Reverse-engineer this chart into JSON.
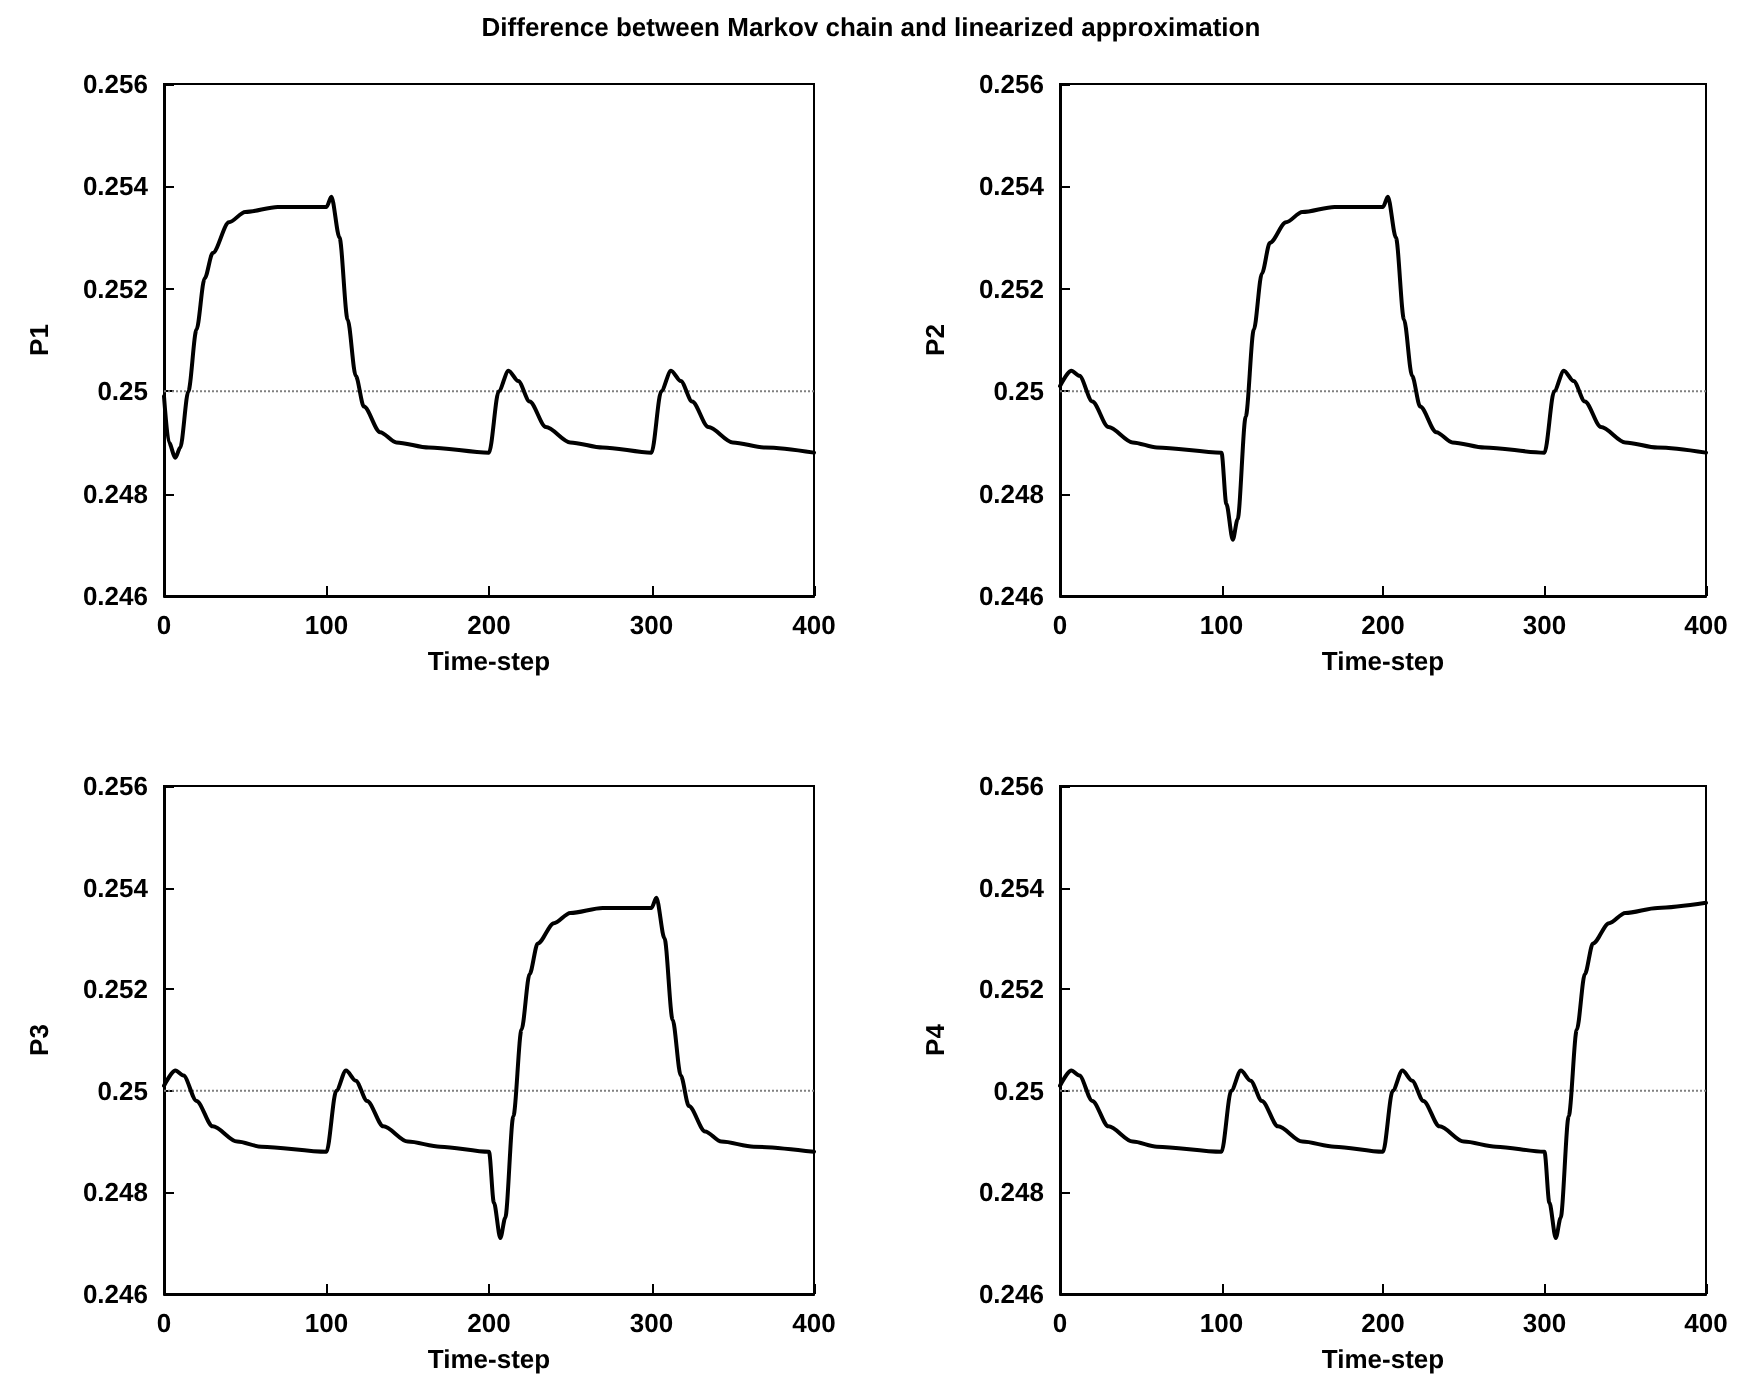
{
  "chart_data": [
    {
      "type": "line",
      "title": "Difference between Markov chain and linearized approximation",
      "xlabel": "Time-step",
      "ylabel": "P1",
      "xlim": [
        0,
        400
      ],
      "xticks": [
        0,
        100,
        200,
        300,
        400
      ],
      "ylim": [
        0.246,
        0.256
      ],
      "yticks": [
        0.246,
        0.248,
        0.25,
        0.252,
        0.254,
        0.256
      ],
      "grid": false,
      "line_style": "solid",
      "ref_lines": [
        {
          "axis": "y",
          "value": 0.25,
          "color": "#808080",
          "line_style": "dotted"
        }
      ],
      "series": [
        {
          "color": "#000000",
          "x": [
            0,
            3,
            7,
            10,
            15,
            20,
            25,
            30,
            40,
            50,
            70,
            100,
            103,
            108,
            113,
            118,
            123,
            133,
            143,
            163,
            200,
            206,
            212,
            218,
            225,
            235,
            250,
            270,
            300,
            306,
            312,
            318,
            325,
            335,
            350,
            370,
            400
          ],
          "values": [
            0.2499,
            0.249,
            0.2487,
            0.2489,
            0.25,
            0.2512,
            0.2522,
            0.2527,
            0.2533,
            0.2535,
            0.2536,
            0.2536,
            0.2538,
            0.253,
            0.2514,
            0.2503,
            0.2497,
            0.2492,
            0.249,
            0.2489,
            0.2488,
            0.25,
            0.2504,
            0.2502,
            0.2498,
            0.2493,
            0.249,
            0.2489,
            0.2488,
            0.25,
            0.2504,
            0.2502,
            0.2498,
            0.2493,
            0.249,
            0.2489,
            0.2488
          ]
        }
      ]
    },
    {
      "type": "line",
      "xlabel": "Time-step",
      "ylabel": "P2",
      "xlim": [
        0,
        400
      ],
      "xticks": [
        0,
        100,
        200,
        300,
        400
      ],
      "ylim": [
        0.246,
        0.256
      ],
      "yticks": [
        0.246,
        0.248,
        0.25,
        0.252,
        0.254,
        0.256
      ],
      "grid": false,
      "line_style": "solid",
      "ref_lines": [
        {
          "axis": "y",
          "value": 0.25,
          "color": "#808080",
          "line_style": "dotted"
        }
      ],
      "series": [
        {
          "color": "#000000",
          "x": [
            0,
            7,
            12,
            20,
            30,
            45,
            60,
            100,
            103,
            107,
            110,
            115,
            120,
            125,
            130,
            140,
            150,
            170,
            200,
            203,
            208,
            213,
            218,
            223,
            233,
            243,
            263,
            300,
            306,
            312,
            318,
            325,
            335,
            350,
            370,
            400
          ],
          "values": [
            0.2501,
            0.2504,
            0.2503,
            0.2498,
            0.2493,
            0.249,
            0.2489,
            0.2488,
            0.2478,
            0.2471,
            0.2475,
            0.2495,
            0.2512,
            0.2523,
            0.2529,
            0.2533,
            0.2535,
            0.2536,
            0.2536,
            0.2538,
            0.253,
            0.2514,
            0.2503,
            0.2497,
            0.2492,
            0.249,
            0.2489,
            0.2488,
            0.25,
            0.2504,
            0.2502,
            0.2498,
            0.2493,
            0.249,
            0.2489,
            0.2488
          ]
        }
      ]
    },
    {
      "type": "line",
      "xlabel": "Time-step",
      "ylabel": "P3",
      "xlim": [
        0,
        400
      ],
      "xticks": [
        0,
        100,
        200,
        300,
        400
      ],
      "ylim": [
        0.246,
        0.256
      ],
      "yticks": [
        0.246,
        0.248,
        0.25,
        0.252,
        0.254,
        0.256
      ],
      "grid": false,
      "line_style": "solid",
      "ref_lines": [
        {
          "axis": "y",
          "value": 0.25,
          "color": "#808080",
          "line_style": "dotted"
        }
      ],
      "series": [
        {
          "color": "#000000",
          "x": [
            0,
            7,
            12,
            20,
            30,
            45,
            60,
            100,
            106,
            112,
            118,
            125,
            135,
            150,
            170,
            200,
            203,
            207,
            210,
            215,
            220,
            225,
            230,
            240,
            250,
            270,
            300,
            303,
            308,
            313,
            318,
            323,
            333,
            343,
            363,
            400
          ],
          "values": [
            0.2501,
            0.2504,
            0.2503,
            0.2498,
            0.2493,
            0.249,
            0.2489,
            0.2488,
            0.25,
            0.2504,
            0.2502,
            0.2498,
            0.2493,
            0.249,
            0.2489,
            0.2488,
            0.2478,
            0.2471,
            0.2475,
            0.2495,
            0.2512,
            0.2523,
            0.2529,
            0.2533,
            0.2535,
            0.2536,
            0.2536,
            0.2538,
            0.253,
            0.2514,
            0.2503,
            0.2497,
            0.2492,
            0.249,
            0.2489,
            0.2488
          ]
        }
      ]
    },
    {
      "type": "line",
      "xlabel": "Time-step",
      "ylabel": "P4",
      "xlim": [
        0,
        400
      ],
      "xticks": [
        0,
        100,
        200,
        300,
        400
      ],
      "ylim": [
        0.246,
        0.256
      ],
      "yticks": [
        0.246,
        0.248,
        0.25,
        0.252,
        0.254,
        0.256
      ],
      "grid": false,
      "line_style": "solid",
      "ref_lines": [
        {
          "axis": "y",
          "value": 0.25,
          "color": "#808080",
          "line_style": "dotted"
        }
      ],
      "series": [
        {
          "color": "#000000",
          "x": [
            0,
            7,
            12,
            20,
            30,
            45,
            60,
            100,
            106,
            112,
            118,
            125,
            135,
            150,
            170,
            200,
            206,
            212,
            218,
            225,
            235,
            250,
            270,
            300,
            303,
            307,
            310,
            315,
            320,
            325,
            330,
            340,
            350,
            370,
            400
          ],
          "values": [
            0.2501,
            0.2504,
            0.2503,
            0.2498,
            0.2493,
            0.249,
            0.2489,
            0.2488,
            0.25,
            0.2504,
            0.2502,
            0.2498,
            0.2493,
            0.249,
            0.2489,
            0.2488,
            0.25,
            0.2504,
            0.2502,
            0.2498,
            0.2493,
            0.249,
            0.2489,
            0.2488,
            0.2478,
            0.2471,
            0.2475,
            0.2495,
            0.2512,
            0.2523,
            0.2529,
            0.2533,
            0.2535,
            0.2536,
            0.2537
          ]
        }
      ]
    }
  ]
}
